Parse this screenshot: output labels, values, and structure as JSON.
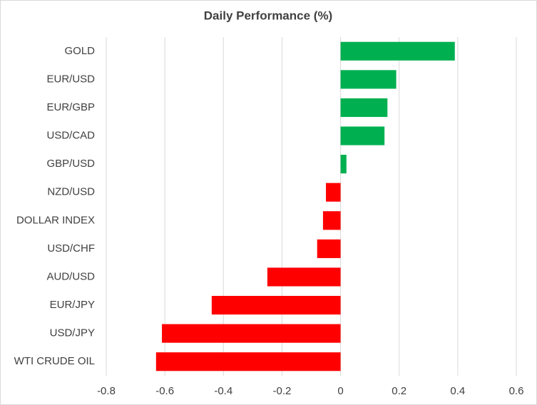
{
  "chart_data": {
    "type": "hbar",
    "title": "Daily Performance (%)",
    "categories": [
      "GOLD",
      "EUR/USD",
      "EUR/GBP",
      "USD/CAD",
      "GBP/USD",
      "NZD/USD",
      "DOLLAR INDEX",
      "USD/CHF",
      "AUD/USD",
      "EUR/JPY",
      "USD/JPY",
      "WTI CRUDE OIL"
    ],
    "values": [
      0.39,
      0.19,
      0.16,
      0.15,
      0.02,
      -0.05,
      -0.06,
      -0.08,
      -0.25,
      -0.44,
      -0.61,
      -0.63
    ],
    "colors": [
      "#00b050",
      "#00b050",
      "#00b050",
      "#00b050",
      "#00b050",
      "#ff0000",
      "#ff0000",
      "#ff0000",
      "#ff0000",
      "#ff0000",
      "#ff0000",
      "#ff0000"
    ],
    "xlim": [
      -0.8,
      0.6
    ],
    "xticks": [
      -0.8,
      -0.6,
      -0.4,
      -0.2,
      0,
      0.2,
      0.4,
      0.6
    ],
    "grid": true
  }
}
